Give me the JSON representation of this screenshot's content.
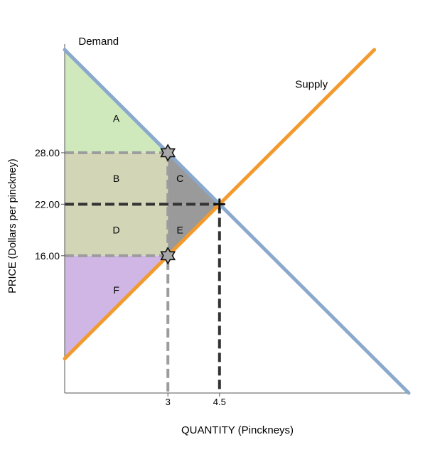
{
  "chart_data": {
    "type": "line",
    "xlabel": "QUANTITY (Pinckneys)",
    "ylabel": "PRICE (Dollars per pinckney)",
    "x_ticks": [
      {
        "value": 3,
        "label": "3"
      },
      {
        "value": 4.5,
        "label": "4.5"
      }
    ],
    "y_ticks": [
      {
        "value": 28,
        "label": "28.00"
      },
      {
        "value": 22,
        "label": "22.00"
      },
      {
        "value": 16,
        "label": "16.00"
      }
    ],
    "xlim": [
      0,
      10
    ],
    "ylim": [
      0,
      40
    ],
    "series": [
      {
        "name": "Demand",
        "color": "#8aa9cc",
        "points": [
          [
            0,
            40
          ],
          [
            10,
            0
          ]
        ]
      },
      {
        "name": "Supply",
        "color": "#f39a2e",
        "points": [
          [
            0,
            4
          ],
          [
            9,
            40
          ]
        ]
      }
    ],
    "equilibrium": {
      "x": 4.5,
      "y": 22
    },
    "quota_quantity": 3,
    "regions": [
      {
        "label": "A",
        "color": "#cfe9bd",
        "polygon": [
          [
            0,
            40
          ],
          [
            0,
            28
          ],
          [
            3,
            28
          ]
        ],
        "label_at": [
          1.5,
          32
        ]
      },
      {
        "label": "B",
        "color": "#d3d6b6",
        "polygon": [
          [
            0,
            28
          ],
          [
            3,
            28
          ],
          [
            3,
            22
          ],
          [
            0,
            22
          ]
        ],
        "label_at": [
          1.5,
          25
        ]
      },
      {
        "label": "C",
        "color": "#9a9a9a",
        "polygon": [
          [
            3,
            28
          ],
          [
            4.5,
            22
          ],
          [
            3,
            22
          ]
        ],
        "label_at": [
          3.35,
          25
        ]
      },
      {
        "label": "D",
        "color": "#d3d6b6",
        "polygon": [
          [
            0,
            22
          ],
          [
            3,
            22
          ],
          [
            3,
            16
          ],
          [
            0,
            16
          ]
        ],
        "label_at": [
          1.5,
          19
        ]
      },
      {
        "label": "E",
        "color": "#9a9a9a",
        "polygon": [
          [
            3,
            22
          ],
          [
            4.5,
            22
          ],
          [
            3,
            16
          ]
        ],
        "label_at": [
          3.35,
          19
        ]
      },
      {
        "label": "F",
        "color": "#d0b6e4",
        "polygon": [
          [
            0,
            16
          ],
          [
            3,
            16
          ],
          [
            0,
            4
          ]
        ],
        "label_at": [
          1.5,
          12
        ]
      }
    ],
    "markers": [
      {
        "type": "star",
        "x": 3,
        "y": 28
      },
      {
        "type": "star",
        "x": 3,
        "y": 16
      },
      {
        "type": "cross",
        "x": 4.5,
        "y": 22
      }
    ],
    "curve_labels": [
      {
        "text": "Demand",
        "at": [
          0.4,
          41
        ]
      },
      {
        "text": "Supply",
        "at": [
          6.7,
          36
        ]
      }
    ],
    "grid": false
  }
}
